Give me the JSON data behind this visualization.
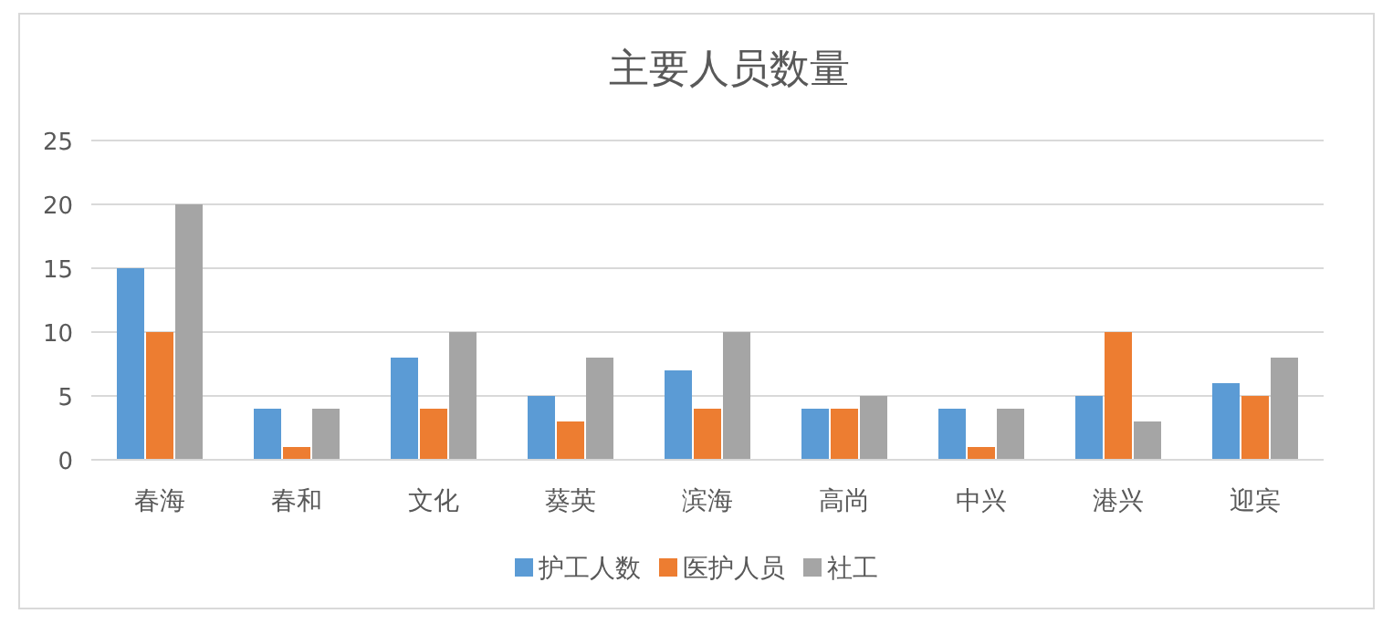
{
  "chart_data": {
    "type": "bar",
    "title": "主要人员数量",
    "categories": [
      "春海",
      "春和",
      "文化",
      "葵英",
      "滨海",
      "高尚",
      "中兴",
      "港兴",
      "迎宾"
    ],
    "series": [
      {
        "name": "护工人数",
        "color": "#5b9bd5",
        "values": [
          15,
          4,
          8,
          5,
          7,
          4,
          4,
          5,
          6
        ]
      },
      {
        "name": "医护人员",
        "color": "#ed7d31",
        "values": [
          10,
          1,
          4,
          3,
          4,
          4,
          1,
          10,
          5
        ]
      },
      {
        "name": "社工",
        "color": "#a5a5a5",
        "values": [
          20,
          4,
          10,
          8,
          10,
          5,
          4,
          3,
          8
        ]
      }
    ],
    "ylim": [
      0,
      25
    ],
    "yticks": [
      0,
      5,
      10,
      15,
      20,
      25
    ],
    "grid": "y",
    "legend": "bottom"
  }
}
